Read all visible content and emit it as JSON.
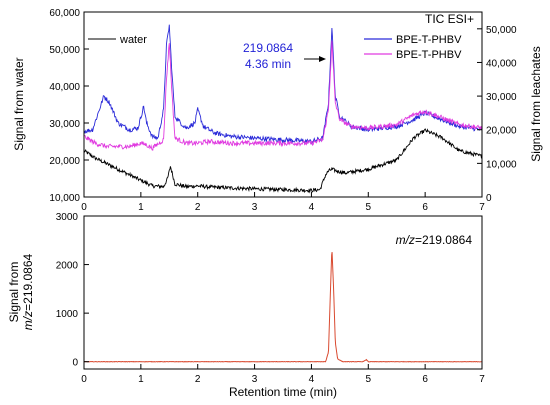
{
  "chart_data": [
    {
      "type": "line",
      "panel": "top",
      "title": "TIC ESI+",
      "xlim": [
        0,
        7
      ],
      "x_ticks": [
        "0",
        "1",
        "2",
        "3",
        "4",
        "5",
        "6",
        "7"
      ],
      "ylabel_left": "Signal from water",
      "ylim_left": [
        10000,
        60000
      ],
      "y_ticks_left": [
        "10,000",
        "20,000",
        "30,000",
        "40,000",
        "50,000",
        "60,000"
      ],
      "ylabel_right": "Signal from leachates",
      "ylim_right": [
        0,
        55000
      ],
      "y_ticks_right": [
        "0",
        "10,000",
        "20,000",
        "30,000",
        "40,000",
        "50,000"
      ],
      "annotation": {
        "line1": "219.0864",
        "line2": "4.36 min",
        "x": 4.36
      },
      "legend_left": {
        "label": "water"
      },
      "legend_right": [
        {
          "label": "BPE-T-PHBV"
        },
        {
          "label": "BPE-T-PHBV"
        }
      ],
      "series": [
        {
          "name": "water",
          "axis": "left",
          "color": "#000000",
          "x": [
            0.0,
            0.2,
            0.4,
            0.6,
            0.8,
            1.0,
            1.1,
            1.2,
            1.4,
            1.47,
            1.52,
            1.6,
            1.8,
            2.0,
            2.2,
            2.5,
            3.0,
            3.5,
            4.0,
            4.15,
            4.25,
            4.3,
            4.36,
            4.45,
            4.6,
            5.0,
            5.5,
            5.8,
            6.0,
            6.3,
            6.6,
            7.0
          ],
          "y": [
            22500,
            20500,
            19000,
            17500,
            16000,
            14500,
            13800,
            13000,
            12800,
            15000,
            18300,
            13500,
            12800,
            13000,
            12700,
            12500,
            12200,
            12000,
            11800,
            12000,
            16000,
            17000,
            17500,
            17000,
            16500,
            17500,
            20000,
            26000,
            28000,
            26000,
            22500,
            21000
          ]
        },
        {
          "name": "BPE-T-PHBV",
          "axis": "right",
          "color": "#2b2bd9",
          "x": [
            0.0,
            0.15,
            0.25,
            0.35,
            0.45,
            0.6,
            0.8,
            0.95,
            1.05,
            1.1,
            1.2,
            1.3,
            1.4,
            1.45,
            1.5,
            1.55,
            1.6,
            1.7,
            1.8,
            1.95,
            2.0,
            2.1,
            2.3,
            2.6,
            3.0,
            3.5,
            4.0,
            4.2,
            4.3,
            4.36,
            4.42,
            4.5,
            4.7,
            5.0,
            5.5,
            5.8,
            6.0,
            6.3,
            6.6,
            7.0
          ],
          "y": [
            19500,
            20000,
            25000,
            30000,
            28000,
            22000,
            20000,
            20500,
            27000,
            22000,
            18000,
            17500,
            26000,
            45000,
            51000,
            36000,
            24000,
            22000,
            20500,
            22000,
            26000,
            21000,
            19000,
            18000,
            17500,
            17000,
            16500,
            17500,
            28000,
            50500,
            30000,
            24000,
            21000,
            20000,
            21000,
            23000,
            25000,
            23000,
            21000,
            20000
          ]
        },
        {
          "name": "BPE-T-PHBV",
          "axis": "right",
          "color": "#e03be0",
          "x": [
            0.0,
            0.2,
            0.4,
            0.6,
            0.8,
            1.0,
            1.1,
            1.2,
            1.4,
            1.45,
            1.5,
            1.55,
            1.6,
            1.8,
            2.0,
            2.2,
            2.6,
            3.0,
            3.5,
            4.0,
            4.2,
            4.3,
            4.36,
            4.42,
            4.5,
            4.7,
            5.0,
            5.5,
            5.8,
            6.0,
            6.3,
            6.6,
            7.0
          ],
          "y": [
            18000,
            16000,
            15000,
            15000,
            15000,
            16000,
            15500,
            14500,
            17000,
            35000,
            46000,
            30000,
            17500,
            16000,
            16000,
            16500,
            16000,
            16000,
            16000,
            16000,
            17000,
            26000,
            46000,
            28000,
            23000,
            21000,
            20500,
            21500,
            24500,
            25500,
            23500,
            21500,
            20500
          ]
        }
      ]
    },
    {
      "type": "line",
      "panel": "bottom",
      "title": "m/z=219.0864",
      "title_italic_part": "m/z",
      "title_rest": "=219.0864",
      "xlabel": "Retention time (min)",
      "xlim": [
        0,
        7
      ],
      "x_ticks": [
        "0",
        "1",
        "2",
        "3",
        "4",
        "5",
        "6",
        "7"
      ],
      "ylabel_line1": "Signal from",
      "ylabel_line2_italic": "m/z",
      "ylabel_line2_rest": "=219.0864",
      "ylim": [
        -150,
        3000
      ],
      "y_ticks": [
        "0",
        "1000",
        "2000",
        "3000"
      ],
      "series": [
        {
          "name": "m/z 219.0864",
          "color": "#d94a30",
          "x": [
            0.0,
            4.0,
            4.25,
            4.3,
            4.33,
            4.36,
            4.39,
            4.42,
            4.46,
            4.55,
            4.9,
            4.97,
            5.0,
            5.05,
            7.0
          ],
          "y": [
            0,
            0,
            0,
            200,
            1300,
            2350,
            1500,
            400,
            60,
            0,
            0,
            40,
            0,
            0,
            0
          ]
        }
      ]
    }
  ]
}
